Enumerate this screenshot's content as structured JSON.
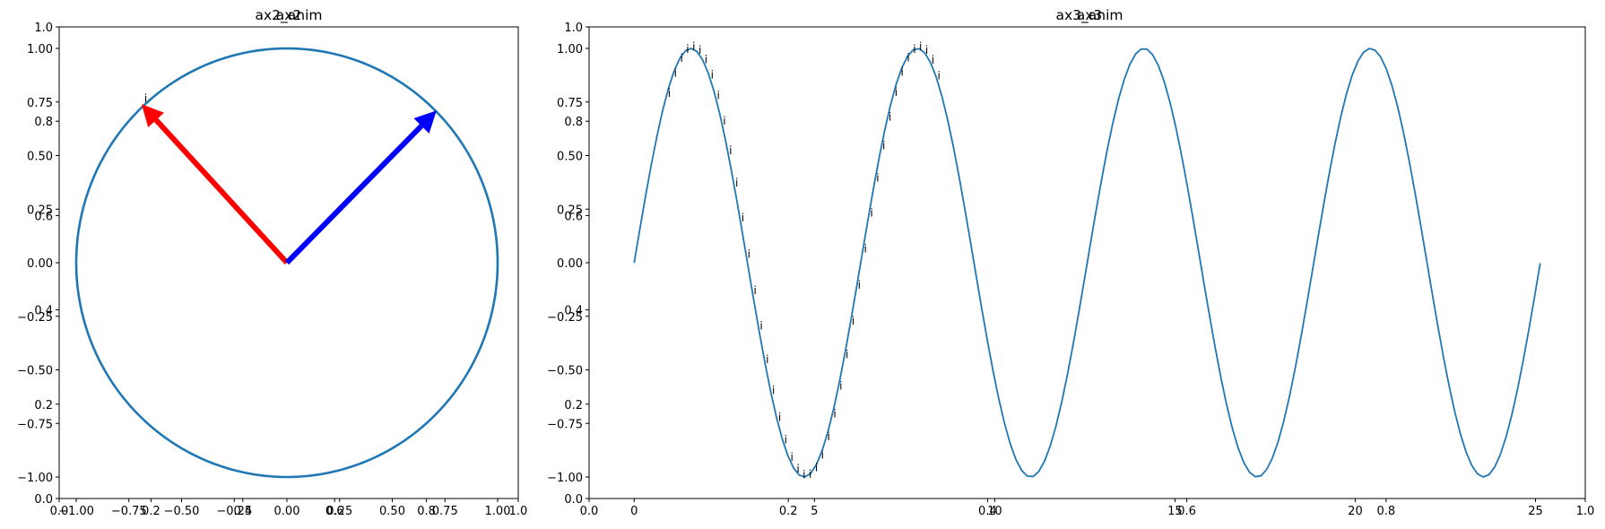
{
  "window": {
    "title": "Matplotlib Figure"
  },
  "chart_data": [
    {
      "type": "line",
      "title_base": "ax2",
      "title_overlay": "ax2_anim",
      "base_axes": {
        "xlim": [
          0.0,
          1.0
        ],
        "ylim": [
          0.0,
          1.0
        ],
        "xticks": [
          "0.0",
          "0.2",
          "0.4",
          "0.6",
          "0.8",
          "1.0"
        ],
        "yticks": [
          "0.0",
          "0.2",
          "0.4",
          "0.6",
          "0.8",
          "1.0"
        ]
      },
      "overlay_axes": {
        "xlim": [
          -1.0,
          1.0
        ],
        "ylim": [
          -1.0,
          1.0
        ],
        "xticks": [
          "−1.00",
          "−0.75",
          "−0.50",
          "−0.25",
          "0.00",
          "0.25",
          "0.50",
          "0.75",
          "1.00"
        ],
        "yticks": [
          "−1.00",
          "−0.75",
          "−0.50",
          "−0.25",
          "0.00",
          "0.25",
          "0.50",
          "0.75",
          "1.00"
        ]
      },
      "series": [
        {
          "kind": "unit-circle",
          "color": "#1f77b4"
        }
      ],
      "arrows": [
        {
          "color": "#ff0000",
          "x0": 0.0,
          "y0": 0.0,
          "x1": -0.69,
          "y1": 0.74
        },
        {
          "color": "#0000ff",
          "x0": 0.0,
          "y0": 0.0,
          "x1": 0.71,
          "y1": 0.71
        }
      ],
      "markers": {
        "char": "i",
        "points": [
          [
            -0.67,
            0.75
          ]
        ]
      },
      "grid": false
    },
    {
      "type": "line",
      "title_base": "ax3",
      "title_overlay": "ax3_anim",
      "base_axes": {
        "xlim": [
          0.0,
          1.0
        ],
        "ylim": [
          0.0,
          1.0
        ],
        "xticks": [
          "0.0",
          "0.2",
          "0.4",
          "0.6",
          "0.8",
          "1.0"
        ],
        "yticks": [
          "0.0",
          "0.2",
          "0.4",
          "0.6",
          "0.8",
          "1.0"
        ]
      },
      "overlay_axes": {
        "xlim": [
          -1.25,
          26.38
        ],
        "ylim": [
          -1.0,
          1.0
        ],
        "xticks": [
          "0",
          "5",
          "10",
          "15",
          "20",
          "25"
        ],
        "yticks": [
          "−1.00",
          "−0.75",
          "−0.50",
          "−0.25",
          "0.00",
          "0.25",
          "0.50",
          "0.75",
          "1.00"
        ]
      },
      "series": [
        {
          "kind": "sine",
          "color": "#1f77b4",
          "x_start": 0.0,
          "x_end": 25.13,
          "points": 160
        }
      ],
      "markers": {
        "char": "i",
        "x_start": 0.9,
        "x_end": 8.5,
        "step": 0.17
      },
      "grid": false
    }
  ]
}
